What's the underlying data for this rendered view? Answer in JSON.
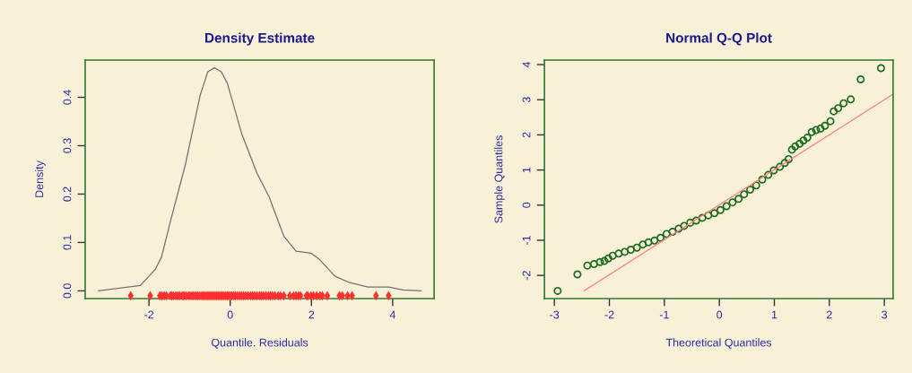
{
  "chart_data": [
    {
      "type": "line",
      "title": "Density Estimate",
      "xlabel": "Quantile. Residuals",
      "ylabel": "Density",
      "xlim": [
        -3.57,
        5.02
      ],
      "ylim": [
        -0.016,
        0.477
      ],
      "xticks": [
        -2,
        0,
        2,
        4
      ],
      "yticks": [
        {
          "value": 0,
          "label": "0.0"
        },
        {
          "value": 0.1,
          "label": "0.1"
        },
        {
          "value": 0.2,
          "label": "0.2"
        },
        {
          "value": 0.3,
          "label": "0.3"
        },
        {
          "value": 0.4,
          "label": "0.4"
        }
      ],
      "grid": false,
      "legend": false,
      "series": [
        {
          "color": "#707070",
          "x": [
            -3.24,
            -2.21,
            -1.84,
            -1.69,
            -1.47,
            -1.1,
            -0.74,
            -0.55,
            -0.39,
            -0.22,
            -0.07,
            0.29,
            0.66,
            0.96,
            1.32,
            1.62,
            1.99,
            2.21,
            2.58,
            2.94,
            3.39,
            3.9,
            4.26,
            4.7
          ],
          "values": [
            0,
            0.011,
            0.045,
            0.07,
            0.144,
            0.262,
            0.404,
            0.453,
            0.461,
            0.453,
            0.429,
            0.323,
            0.243,
            0.194,
            0.113,
            0.082,
            0.078,
            0.064,
            0.03,
            0.017,
            0.008,
            0.008,
            0.002,
            0
          ]
        },
        {
          "type": "scatter",
          "marker": "diamond",
          "color": "#ff3030",
          "x": [
            -2.45,
            -1.97,
            -1.73,
            -1.68,
            -1.62,
            -1.57,
            -1.47,
            -1.44,
            -1.4,
            -1.34,
            -1.29,
            -1.24,
            -1.18,
            -1.14,
            -1.09,
            -1.03,
            -0.99,
            -0.94,
            -0.9,
            -0.85,
            -0.8,
            -0.75,
            -0.7,
            -0.66,
            -0.63,
            -0.59,
            -0.55,
            -0.52,
            -0.48,
            -0.44,
            -0.41,
            -0.37,
            -0.33,
            -0.3,
            -0.26,
            -0.22,
            -0.19,
            -0.15,
            -0.11,
            -0.07,
            -0.04,
            0.0,
            0.04,
            0.09,
            0.13,
            0.18,
            0.23,
            0.28,
            0.33,
            0.38,
            0.44,
            0.5,
            0.55,
            0.6,
            0.66,
            0.72,
            0.77,
            0.82,
            0.88,
            0.94,
            0.99,
            1.04,
            1.1,
            1.18,
            1.24,
            1.32,
            1.47,
            1.56,
            1.62,
            1.68,
            1.73,
            1.88,
            1.91,
            1.99,
            2.05,
            2.13,
            2.21,
            2.27,
            2.39,
            2.69,
            2.76,
            2.89,
            3.0,
            3.59,
            3.9
          ],
          "values": [
            -0.01,
            -0.01,
            -0.01,
            -0.01,
            -0.01,
            -0.01,
            -0.01,
            -0.01,
            -0.01,
            -0.01,
            -0.01,
            -0.01,
            -0.01,
            -0.01,
            -0.01,
            -0.01,
            -0.01,
            -0.01,
            -0.01,
            -0.01,
            -0.01,
            -0.01,
            -0.01,
            -0.01,
            -0.01,
            -0.01,
            -0.01,
            -0.01,
            -0.01,
            -0.01,
            -0.01,
            -0.01,
            -0.01,
            -0.01,
            -0.01,
            -0.01,
            -0.01,
            -0.01,
            -0.01,
            -0.01,
            -0.01,
            -0.01,
            -0.01,
            -0.01,
            -0.01,
            -0.01,
            -0.01,
            -0.01,
            -0.01,
            -0.01,
            -0.01,
            -0.01,
            -0.01,
            -0.01,
            -0.01,
            -0.01,
            -0.01,
            -0.01,
            -0.01,
            -0.01,
            -0.01,
            -0.01,
            -0.01,
            -0.01,
            -0.01,
            -0.01,
            -0.01,
            -0.01,
            -0.01,
            -0.01,
            -0.01,
            -0.01,
            -0.01,
            -0.01,
            -0.01,
            -0.01,
            -0.01,
            -0.01,
            -0.01,
            -0.01,
            -0.01,
            -0.01,
            -0.01,
            -0.01,
            -0.01
          ]
        }
      ]
    },
    {
      "type": "scatter",
      "title": "Normal Q-Q Plot",
      "xlabel": "Theoretical Quantiles",
      "ylabel": "Sample Quantiles",
      "xlim": [
        -3.18,
        3.16
      ],
      "ylim": [
        -2.66,
        4.13
      ],
      "xticks": [
        -3,
        -2,
        -1,
        0,
        1,
        2,
        3
      ],
      "yticks": [
        -2,
        -1,
        0,
        1,
        2,
        3,
        4
      ],
      "grid": false,
      "legend": false,
      "series": [
        {
          "type": "line",
          "color": "#ff8080",
          "x": [
            -2.46,
            3.16
          ],
          "values": [
            -2.44,
            3.16
          ]
        },
        {
          "marker": "circle",
          "color": "#1e6b1e",
          "x": [
            -2.94,
            -2.58,
            -2.4,
            -2.28,
            -2.17,
            -2.09,
            -2.02,
            -1.94,
            -1.83,
            -1.72,
            -1.61,
            -1.5,
            -1.39,
            -1.29,
            -1.18,
            -1.07,
            -0.96,
            -0.85,
            -0.74,
            -0.64,
            -0.53,
            -0.42,
            -0.31,
            -0.2,
            -0.09,
            0.02,
            0.13,
            0.24,
            0.35,
            0.45,
            0.56,
            0.67,
            0.78,
            0.89,
            0.99,
            1.1,
            1.19,
            1.26,
            1.32,
            1.38,
            1.46,
            1.53,
            1.6,
            1.68,
            1.76,
            1.84,
            1.92,
            2.02,
            2.08,
            2.16,
            2.26,
            2.39,
            2.57,
            2.94
          ],
          "values": [
            -2.44,
            -1.97,
            -1.72,
            -1.68,
            -1.62,
            -1.59,
            -1.52,
            -1.44,
            -1.38,
            -1.33,
            -1.27,
            -1.21,
            -1.12,
            -1.06,
            -1.01,
            -0.93,
            -0.82,
            -0.76,
            -0.67,
            -0.59,
            -0.5,
            -0.44,
            -0.36,
            -0.29,
            -0.23,
            -0.14,
            -0.03,
            0.08,
            0.18,
            0.31,
            0.44,
            0.56,
            0.73,
            0.86,
            0.99,
            1.09,
            1.2,
            1.31,
            1.58,
            1.67,
            1.75,
            1.84,
            1.92,
            2.08,
            2.14,
            2.18,
            2.26,
            2.39,
            2.67,
            2.76,
            2.9,
            3.01,
            3.58,
            3.9
          ]
        }
      ]
    }
  ]
}
